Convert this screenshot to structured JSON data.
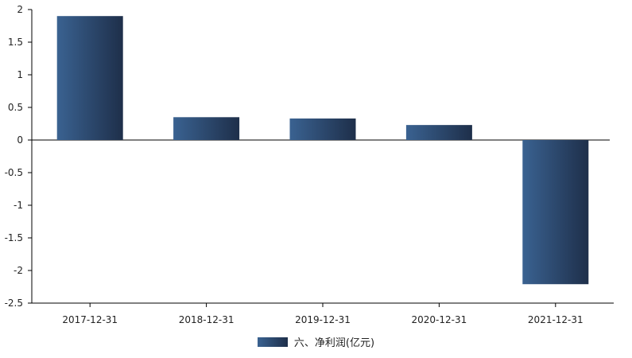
{
  "chart_data": {
    "type": "bar",
    "categories": [
      "2017-12-31",
      "2018-12-31",
      "2019-12-31",
      "2020-12-31",
      "2021-12-31"
    ],
    "series": [
      {
        "name": "六、净利润(亿元)",
        "values": [
          1.9,
          0.35,
          0.33,
          0.23,
          -2.21
        ]
      }
    ],
    "ylim": [
      -2.5,
      2
    ],
    "yticks": [
      "2",
      "1.5",
      "1",
      "0.5",
      "0",
      "-0.5",
      "-1",
      "-1.5",
      "-2",
      "-2.5"
    ],
    "title": "",
    "xlabel": "",
    "ylabel": "",
    "grid": false,
    "legend_position": "bottom-center",
    "colors": {
      "bar_light": "#3a6291",
      "bar_dark": "#1e2f4a",
      "axis": "#000000"
    }
  }
}
